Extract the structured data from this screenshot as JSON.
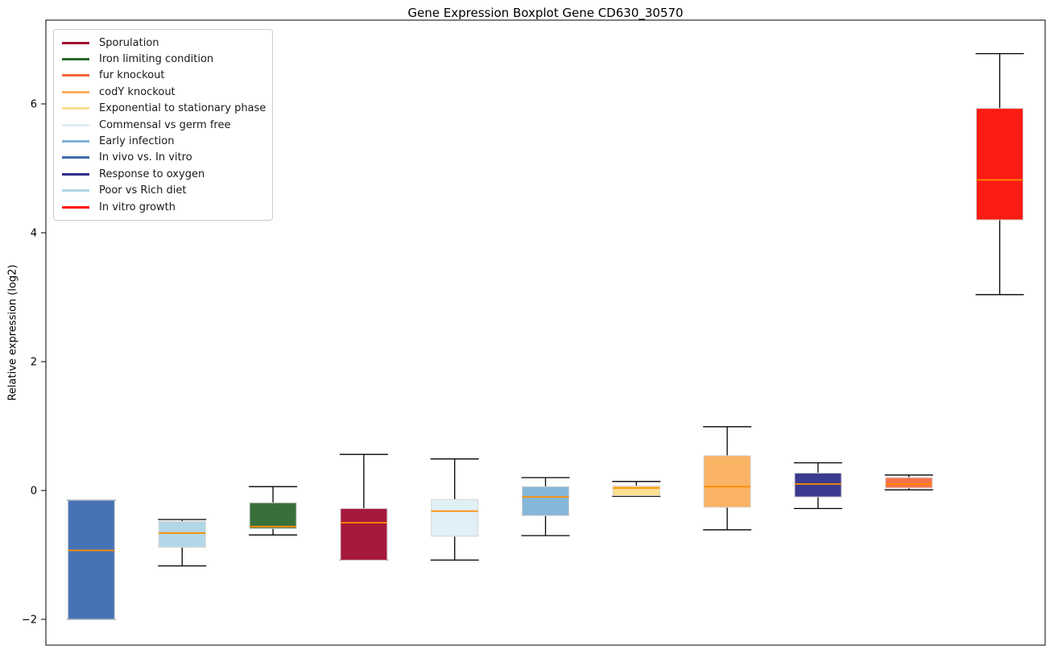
{
  "chart_data": {
    "type": "boxplot",
    "title": "Gene Expression Boxplot Gene CD630_30570",
    "ylabel": "Relative expression (log2)",
    "ylim": [
      -2.4,
      7.3
    ],
    "yticks": [
      -2,
      0,
      2,
      4,
      6
    ],
    "grid": false,
    "legend_position": "upper left",
    "median_color": "#ff8c00",
    "whisker_color": "#000000",
    "box_edge_color": "#d4d4d4",
    "legend": [
      {
        "label": "Sporulation",
        "color": "#a00d30"
      },
      {
        "label": "Iron limiting condition",
        "color": "#2d682f"
      },
      {
        "label": "fur knockout",
        "color": "#f4693e"
      },
      {
        "label": "codY knockout",
        "color": "#fbaf5d"
      },
      {
        "label": "Exponential to stationary phase",
        "color": "#fcdf8d"
      },
      {
        "label": "Commensal vs germ free",
        "color": "#dfeef7"
      },
      {
        "label": "Early infection",
        "color": "#7fb2d6"
      },
      {
        "label": "In vivo vs. In vitro",
        "color": "#3d6cb2"
      },
      {
        "label": "Response to oxygen",
        "color": "#2f2f8a"
      },
      {
        "label": "Poor vs Rich diet",
        "color": "#aed5e6"
      },
      {
        "label": "In vitro growth",
        "color": "#fc1006"
      }
    ],
    "boxes": [
      {
        "condition": "In vivo vs. In vitro",
        "color": "#3d6cb2",
        "whisker_low": -2.0,
        "q1": -2.0,
        "median": -0.93,
        "q3": -0.15,
        "whisker_high": -0.15
      },
      {
        "condition": "Poor vs Rich diet",
        "color": "#aed5e6",
        "whisker_low": -1.17,
        "q1": -0.88,
        "median": -0.66,
        "q3": -0.48,
        "whisker_high": -0.45
      },
      {
        "condition": "Iron limiting condition",
        "color": "#2d682f",
        "whisker_low": -0.69,
        "q1": -0.59,
        "median": -0.56,
        "q3": -0.19,
        "whisker_high": 0.06
      },
      {
        "condition": "Sporulation",
        "color": "#a00d30",
        "whisker_low": -1.08,
        "q1": -1.08,
        "median": -0.5,
        "q3": -0.28,
        "whisker_high": 0.56
      },
      {
        "condition": "Commensal vs germ free",
        "color": "#dfeef7",
        "whisker_low": -1.08,
        "q1": -0.71,
        "median": -0.32,
        "q3": -0.14,
        "whisker_high": 0.49
      },
      {
        "condition": "Early infection",
        "color": "#7fb2d6",
        "whisker_low": -0.7,
        "q1": -0.39,
        "median": -0.1,
        "q3": 0.06,
        "whisker_high": 0.2
      },
      {
        "condition": "Exponential to stationary phase",
        "color": "#fcdf8d",
        "whisker_low": -0.09,
        "q1": -0.08,
        "median": 0.04,
        "q3": 0.07,
        "whisker_high": 0.14
      },
      {
        "condition": "codY knockout",
        "color": "#fbaf5d",
        "whisker_low": -0.61,
        "q1": -0.26,
        "median": 0.06,
        "q3": 0.54,
        "whisker_high": 0.99
      },
      {
        "condition": "Response to oxygen",
        "color": "#2f2f8a",
        "whisker_low": -0.28,
        "q1": -0.1,
        "median": 0.1,
        "q3": 0.27,
        "whisker_high": 0.43
      },
      {
        "condition": "fur knockout",
        "color": "#f4693e",
        "whisker_low": 0.01,
        "q1": 0.04,
        "median": 0.1,
        "q3": 0.2,
        "whisker_high": 0.24
      },
      {
        "condition": "In vitro growth",
        "color": "#fc1006",
        "whisker_low": 3.04,
        "q1": 4.2,
        "median": 4.82,
        "q3": 5.93,
        "whisker_high": 6.78
      }
    ]
  }
}
